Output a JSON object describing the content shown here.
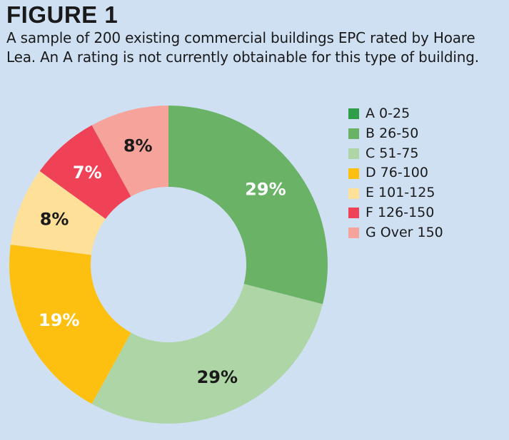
{
  "figure": {
    "title": "FIGURE 1",
    "caption": "A sample of 200 existing commercial buildings EPC rated by Hoare Lea. An A rating is not currently obtainable for this type of building."
  },
  "chart_data": {
    "type": "pie",
    "style": "donut",
    "title": "FIGURE 1",
    "legend_position": "top-right",
    "categories": [
      "A 0-25",
      "B 26-50",
      "C 51-75",
      "D 76-100",
      "E 101-125",
      "F 126-150",
      "G Over 150"
    ],
    "values": [
      0,
      29,
      29,
      19,
      8,
      7,
      8
    ],
    "labels": [
      "",
      "29%",
      "29%",
      "19%",
      "8%",
      "7%",
      "8%"
    ],
    "colors": [
      "#2e9e48",
      "#6ab366",
      "#aed5a6",
      "#fec010",
      "#fee099",
      "#ef4257",
      "#f5a39b"
    ],
    "label_colors": [
      "#ffffff",
      "#ffffff",
      "#1a1a1a",
      "#ffffff",
      "#1a1a1a",
      "#ffffff",
      "#1a1a1a"
    ]
  }
}
